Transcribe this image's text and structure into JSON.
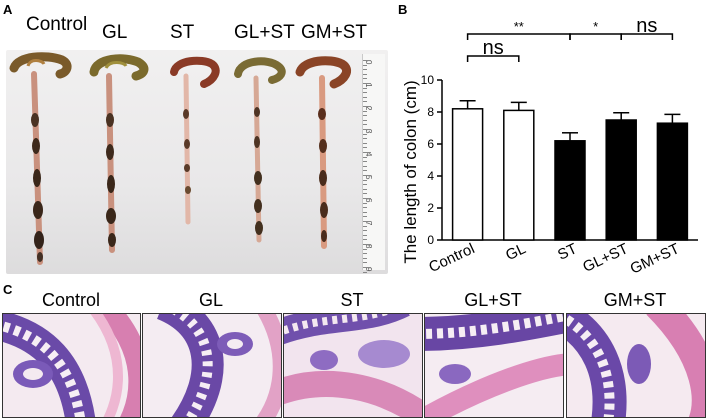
{
  "panel_a": {
    "letter": "A",
    "labels": [
      "Control",
      "GL",
      "ST",
      "GL+ST",
      "GM+ST"
    ],
    "ruler_numbers": [
      "0",
      "1",
      "2",
      "3",
      "4",
      "5",
      "6",
      "7",
      "8",
      "9"
    ]
  },
  "panel_b": {
    "letter": "B"
  },
  "panel_c": {
    "letter": "C",
    "labels": [
      "Control",
      "GL",
      "ST",
      "GL+ST",
      "GM+ST"
    ]
  },
  "chart_data": {
    "type": "bar",
    "categories": [
      "Control",
      "GL",
      "ST",
      "GL+ST",
      "GM+ST"
    ],
    "values": [
      8.2,
      8.1,
      6.2,
      7.5,
      7.3
    ],
    "errors": [
      0.5,
      0.5,
      0.5,
      0.45,
      0.55
    ],
    "fills": [
      "#ffffff",
      "#ffffff",
      "#000000",
      "#000000",
      "#000000"
    ],
    "ylabel": "The length of colon (cm)",
    "xlabel": "",
    "ylim": [
      0,
      10
    ],
    "yticks": [
      "0",
      "2",
      "4",
      "6",
      "8",
      "10"
    ],
    "significance": [
      {
        "from": 0,
        "to": 2,
        "label": "**"
      },
      {
        "from": 0,
        "to": 1,
        "label": "ns"
      },
      {
        "from": 2,
        "to": 3,
        "label": "*"
      },
      {
        "from": 3,
        "to": 4,
        "label": "ns"
      }
    ]
  }
}
